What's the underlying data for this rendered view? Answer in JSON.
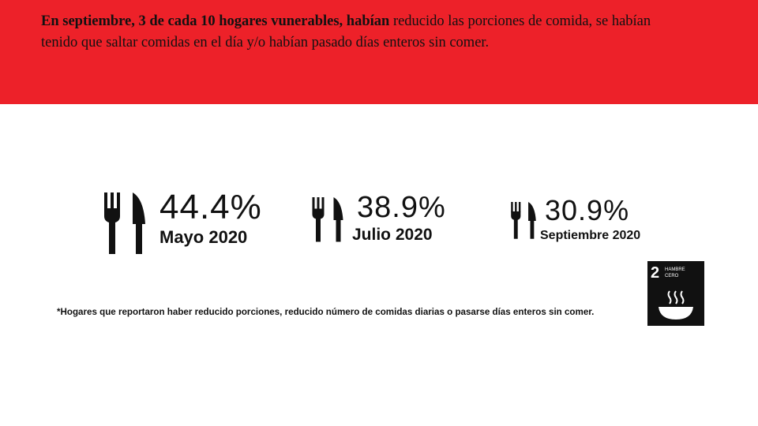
{
  "header": {
    "headline_bold": "En septiembre, 3 de cada 10 hogares vunerables, habían",
    "headline_rest": " reducido las porciones de comida, se habían tenido que saltar comidas en el día y/o habían pasado días enteros sin comer."
  },
  "stats": [
    {
      "value": "44.4%",
      "period": "Mayo 2020",
      "icon": "fork-knife-icon"
    },
    {
      "value": "38.9%",
      "period": "Julio 2020",
      "icon": "fork-knife-icon"
    },
    {
      "value": "30.9%",
      "period": "Septiembre 2020",
      "icon": "fork-knife-icon"
    }
  ],
  "footnote": "*Hogares que reportaron haber reducido porciones, reducido número de comidas diarias o pasarse días enteros sin comer.",
  "sdg_badge": {
    "number": "2",
    "title_line1": "HAMBRE",
    "title_line2": "CERO",
    "icon": "bowl-icon"
  },
  "colors": {
    "banner": "#ed2129",
    "text": "#111111",
    "badge": "#111111"
  }
}
